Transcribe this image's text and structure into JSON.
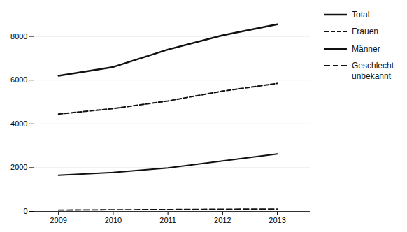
{
  "chart_data": {
    "type": "line",
    "x": [
      2009,
      2010,
      2011,
      2012,
      2013
    ],
    "series": [
      {
        "name": "Total",
        "color": "#111111",
        "line_style": "solid",
        "values": [
          6200,
          6600,
          7400,
          8050,
          8550
        ]
      },
      {
        "name": "Frauen",
        "color": "#111111",
        "line_style": "dashed",
        "values": [
          4450,
          4700,
          5050,
          5500,
          5850
        ]
      },
      {
        "name": "Männer",
        "color": "#111111",
        "line_style": "solid",
        "values": [
          1650,
          1780,
          1990,
          2310,
          2630
        ]
      },
      {
        "name": "Geschlecht\nunbekannt",
        "color": "#111111",
        "line_style": "dashed",
        "values": [
          60,
          75,
          85,
          100,
          110
        ]
      }
    ],
    "xlim": [
      2008.55,
      2013.6
    ],
    "xticks": [
      2009,
      2010,
      2011,
      2012,
      2013
    ],
    "ylim": [
      0,
      9200
    ],
    "yticks": [
      0,
      2000,
      4000,
      6000,
      8000
    ],
    "grid": true,
    "legend": "right"
  }
}
